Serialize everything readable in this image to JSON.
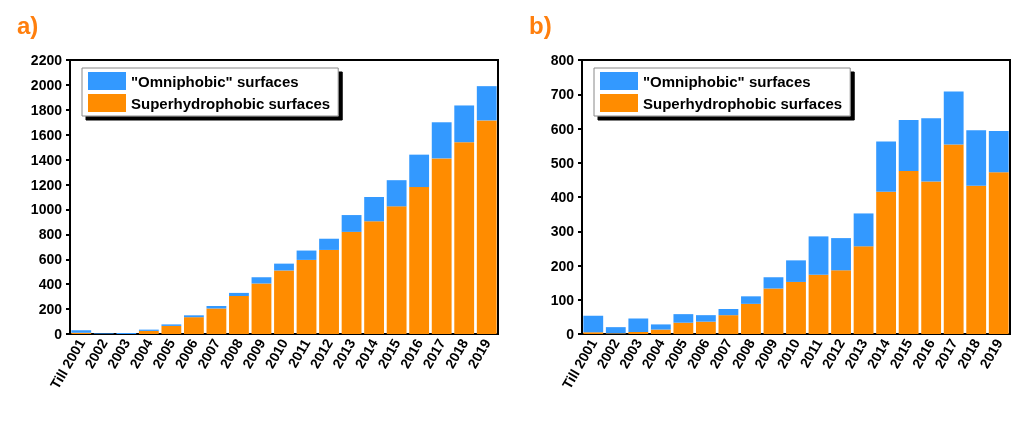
{
  "chart_data": [
    {
      "type": "bar",
      "title": "a)",
      "stacked": true,
      "legend": "top left",
      "grid": false,
      "categories": [
        "Till 2001",
        "2002",
        "2003",
        "2004",
        "2005",
        "2006",
        "2007",
        "2008",
        "2009",
        "2010",
        "2011",
        "2012",
        "2013",
        "2014",
        "2015",
        "2016",
        "2017",
        "2018",
        "2019"
      ],
      "series": [
        {
          "name": "Superhydrophobic surfaces",
          "color": "#ff8c00",
          "values": [
            10,
            null,
            null,
            25,
            65,
            135,
            205,
            305,
            405,
            510,
            595,
            675,
            820,
            905,
            1025,
            1180,
            1410,
            1540,
            1715
          ]
        },
        {
          "name": "\"Omniphobic\" surfaces",
          "color": "#3399ff",
          "values": [
            20,
            5,
            8,
            10,
            12,
            15,
            20,
            25,
            50,
            55,
            75,
            90,
            135,
            195,
            210,
            260,
            290,
            295,
            275
          ]
        }
      ],
      "ylim": [
        0,
        2200
      ],
      "yticks": [
        0,
        200,
        400,
        600,
        800,
        1000,
        1200,
        1400,
        1600,
        1800,
        2000,
        2200
      ]
    },
    {
      "type": "bar",
      "title": "b)",
      "stacked": true,
      "legend": "top left",
      "grid": false,
      "categories": [
        "Till 2001",
        "2002",
        "2003",
        "2004",
        "2005",
        "2006",
        "2007",
        "2008",
        "2009",
        "2010",
        "2011",
        "2012",
        "2013",
        "2014",
        "2015",
        "2016",
        "2017",
        "2018",
        "2019"
      ],
      "series": [
        {
          "name": "Superhydrophobic surfaces",
          "color": "#ff8c00",
          "values": [
            5,
            2,
            6,
            13,
            33,
            36,
            55,
            88,
            133,
            152,
            173,
            186,
            256,
            415,
            476,
            445,
            553,
            433,
            472
          ]
        },
        {
          "name": "\"Omniphobic\" surfaces",
          "color": "#3399ff",
          "values": [
            48,
            18,
            39,
            15,
            25,
            19,
            18,
            22,
            33,
            63,
            112,
            94,
            96,
            147,
            149,
            185,
            155,
            162,
            121
          ]
        }
      ],
      "ylim": [
        0,
        800
      ],
      "yticks": [
        0,
        100,
        200,
        300,
        400,
        500,
        600,
        700,
        800
      ]
    }
  ]
}
